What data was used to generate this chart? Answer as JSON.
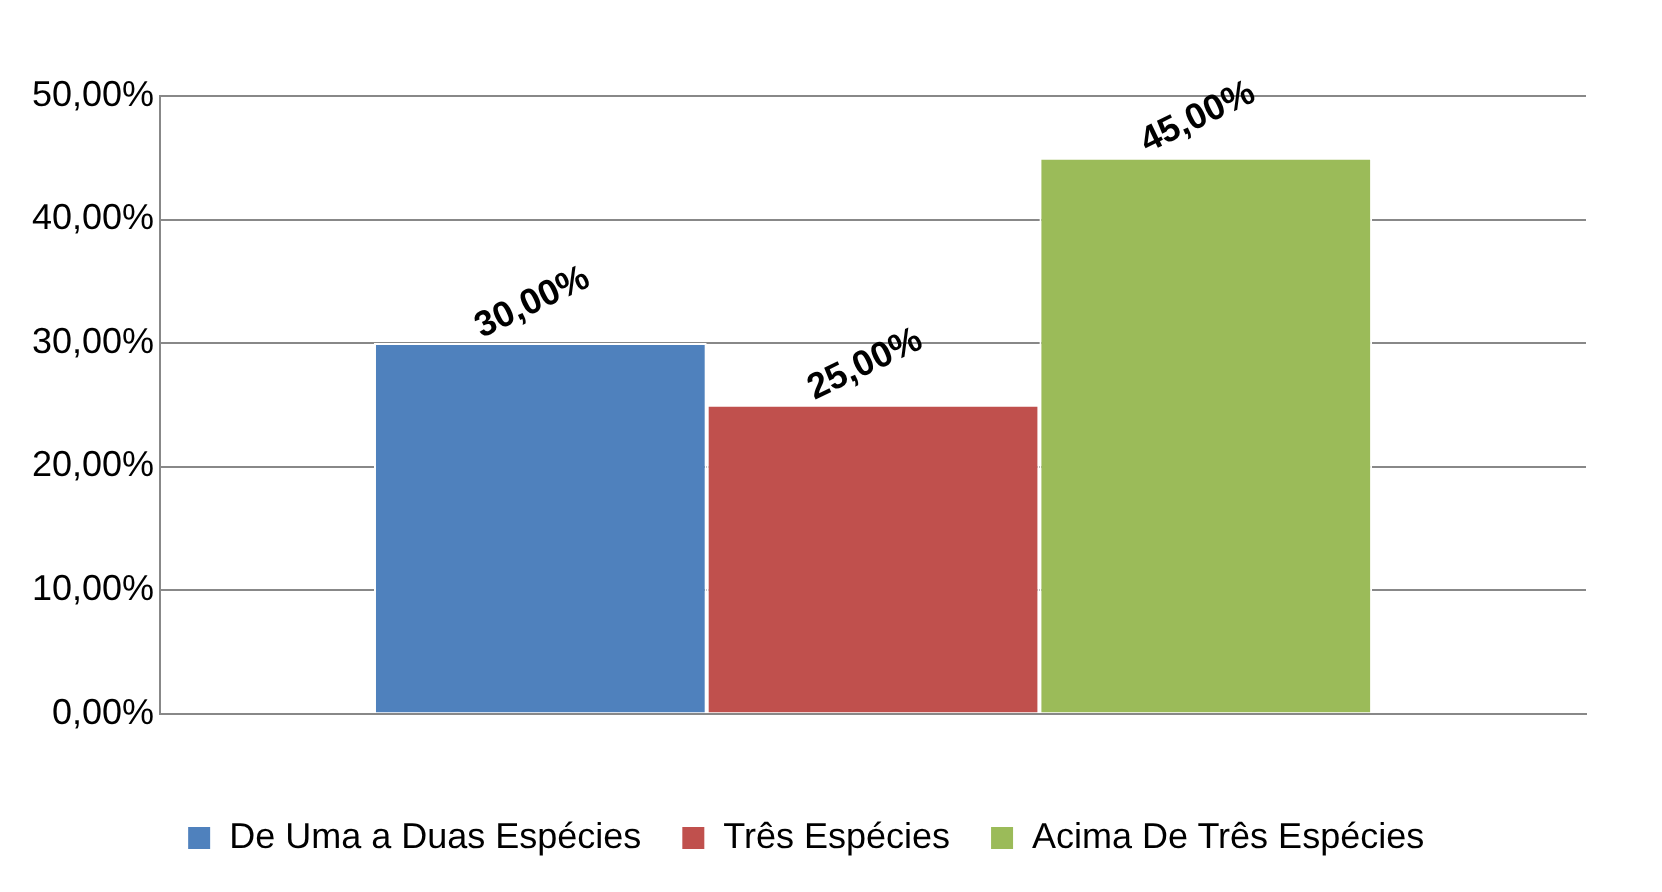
{
  "chart_data": {
    "type": "bar",
    "categories": [
      null
    ],
    "series": [
      {
        "name": "De Uma a Duas Espécies",
        "color": "#4f81bd",
        "values": [
          30
        ],
        "value_labels": [
          "30,00%"
        ]
      },
      {
        "name": "Três Espécies",
        "color": "#c0504d",
        "values": [
          25
        ],
        "value_labels": [
          "25,00%"
        ]
      },
      {
        "name": "Acima De Três Espécies",
        "color": "#9bbb59",
        "values": [
          45
        ],
        "value_labels": [
          "45,00%"
        ]
      }
    ],
    "ylim": [
      0,
      50
    ],
    "yticks": [
      {
        "value": 0,
        "label": "0,00%"
      },
      {
        "value": 10,
        "label": "10,00%"
      },
      {
        "value": 20,
        "label": "20,00%"
      },
      {
        "value": 30,
        "label": "30,00%"
      },
      {
        "value": 40,
        "label": "40,00%"
      },
      {
        "value": 50,
        "label": "50,00%"
      }
    ],
    "grid": "y",
    "legend": "bottom"
  }
}
